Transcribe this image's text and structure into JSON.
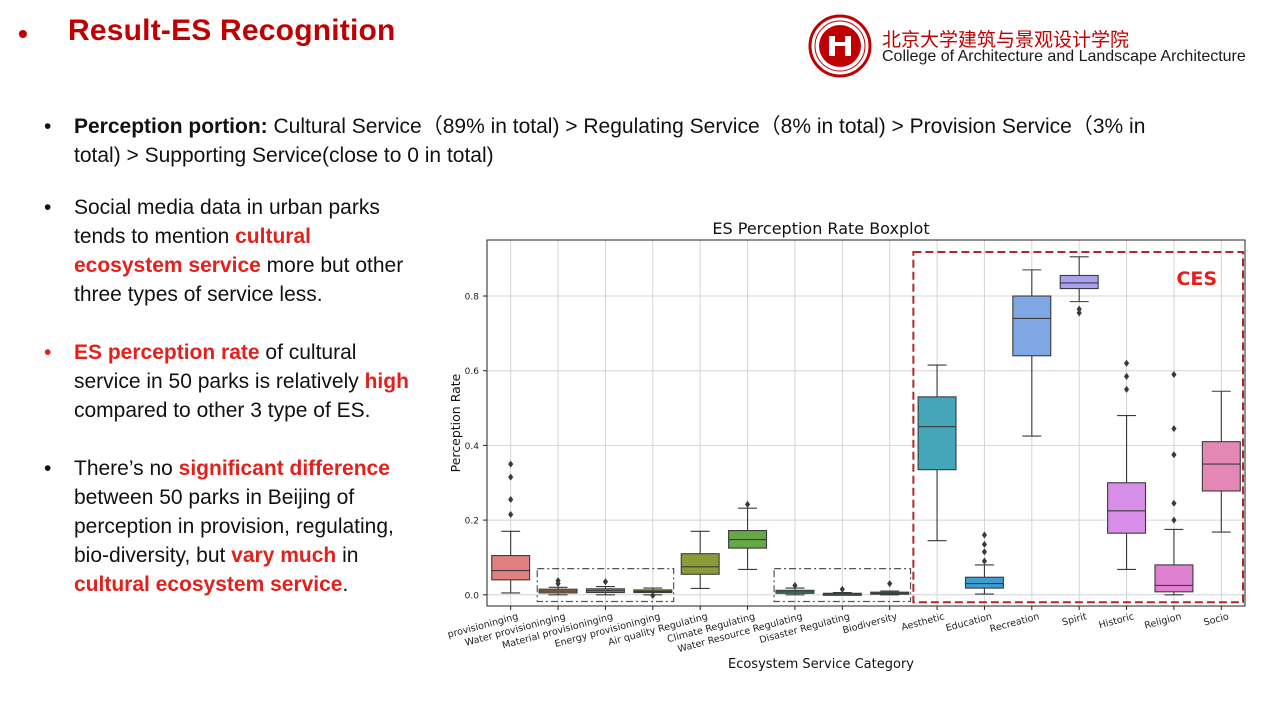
{
  "header": {
    "bullet": "•",
    "title": "Result-ES Recognition",
    "institution_cn": "北京大学建筑与景观设计学院",
    "institution_en": "College of Architecture and Landscape Architecture",
    "logo_text": "PEKING UNIVERSITY 1898",
    "accent_color": "#c00000"
  },
  "top_bullet": {
    "label": "Perception portion:",
    "line1": " Cultural Service（89% in total) > Regulating Service（8% in total) > Provision Service（3% in",
    "line2": "total) > Supporting Service(close to 0 in total)"
  },
  "bullets": [
    {
      "parts": [
        "Social media data in urban parks",
        "tends to mention ",
        "cultural",
        "ecosystem service",
        " more but other",
        "three types of service less."
      ]
    },
    {
      "parts": [
        "ES perception rate",
        " of cultural",
        "service in 50 parks is relatively ",
        "high",
        "compared to other 3 type of ES."
      ]
    },
    {
      "parts": [
        "There’s no ",
        "significant difference",
        "between 50 parks in Beijing of",
        "perception in provision, regulating,",
        "bio-diversity, but ",
        "vary much",
        " in",
        "cultural ecosystem service",
        "."
      ]
    }
  ],
  "chart_data": {
    "type": "boxplot",
    "title": "ES Perception Rate Boxplot",
    "xlabel": "Ecosystem Service Category",
    "ylabel": "Perception Rate",
    "ylim": [
      -0.03,
      0.95
    ],
    "yticks": [
      "0.0",
      "0.2",
      "0.4",
      "0.6",
      "0.8"
    ],
    "grid": true,
    "annotation": "CES",
    "categories": [
      {
        "label": "Food provisioninging",
        "color": "#e2807f",
        "box": [
          0.005,
          0.04,
          0.065,
          0.105,
          0.17
        ],
        "fliers": [
          0.215,
          0.255,
          0.315,
          0.35
        ]
      },
      {
        "label": "Water provisioninging",
        "color": "#b87942",
        "box": [
          0.0,
          0.005,
          0.01,
          0.015,
          0.02
        ],
        "fliers": [
          0.03,
          0.038
        ]
      },
      {
        "label": "Material provisioninging",
        "color": "#9a8a3f",
        "box": [
          0.0,
          0.006,
          0.011,
          0.016,
          0.022
        ],
        "fliers": [
          0.035
        ]
      },
      {
        "label": "Energy provisioninging",
        "color": "#8a8d35",
        "box": [
          0.0,
          0.006,
          0.009,
          0.013,
          0.018
        ],
        "fliers": [
          -0.002
        ]
      },
      {
        "label": "Air quality Regulating",
        "color": "#8a9c38",
        "box": [
          0.017,
          0.055,
          0.075,
          0.11,
          0.17
        ],
        "fliers": []
      },
      {
        "label": "Climate Regulating",
        "color": "#66a846",
        "box": [
          0.068,
          0.125,
          0.148,
          0.172,
          0.232
        ],
        "fliers": [
          0.242
        ]
      },
      {
        "label": "Water Resource Regulating",
        "color": "#45ac8e",
        "box": [
          0.0,
          0.004,
          0.008,
          0.012,
          0.018
        ],
        "fliers": [
          0.025
        ]
      },
      {
        "label": "Disaster Regulating",
        "color": "#3fab9f",
        "box": [
          0.0,
          0.001,
          0.002,
          0.004,
          0.006
        ],
        "fliers": [
          0.015
        ]
      },
      {
        "label": "Biodiversity",
        "color": "#45a8a8",
        "box": [
          0.0,
          0.002,
          0.004,
          0.007,
          0.01
        ],
        "fliers": [
          0.03
        ]
      },
      {
        "label": "Aesthetic",
        "color": "#44a6b8",
        "box": [
          0.145,
          0.335,
          0.45,
          0.53,
          0.615
        ],
        "fliers": []
      },
      {
        "label": "Education",
        "color": "#3e9ed3",
        "box": [
          0.002,
          0.018,
          0.03,
          0.047,
          0.08
        ],
        "fliers": [
          0.09,
          0.115,
          0.135,
          0.16
        ]
      },
      {
        "label": "Recreation",
        "color": "#7ea7e3",
        "box": [
          0.425,
          0.64,
          0.74,
          0.8,
          0.87
        ],
        "fliers": []
      },
      {
        "label": "Spirit",
        "color": "#a9a3ef",
        "box": [
          0.785,
          0.82,
          0.835,
          0.855,
          0.905
        ],
        "fliers": [
          0.755,
          0.765
        ]
      },
      {
        "label": "Historic",
        "color": "#d68ee8",
        "box": [
          0.068,
          0.165,
          0.225,
          0.3,
          0.48
        ],
        "fliers": [
          0.55,
          0.585,
          0.62
        ]
      },
      {
        "label": "Religion",
        "color": "#e080d1",
        "box": [
          0.0,
          0.008,
          0.025,
          0.08,
          0.175
        ],
        "fliers": [
          0.2,
          0.245,
          0.375,
          0.445,
          0.59
        ]
      },
      {
        "label": "Socio",
        "color": "#e487b4",
        "box": [
          0.168,
          0.278,
          0.35,
          0.41,
          0.545
        ],
        "fliers": []
      }
    ]
  }
}
